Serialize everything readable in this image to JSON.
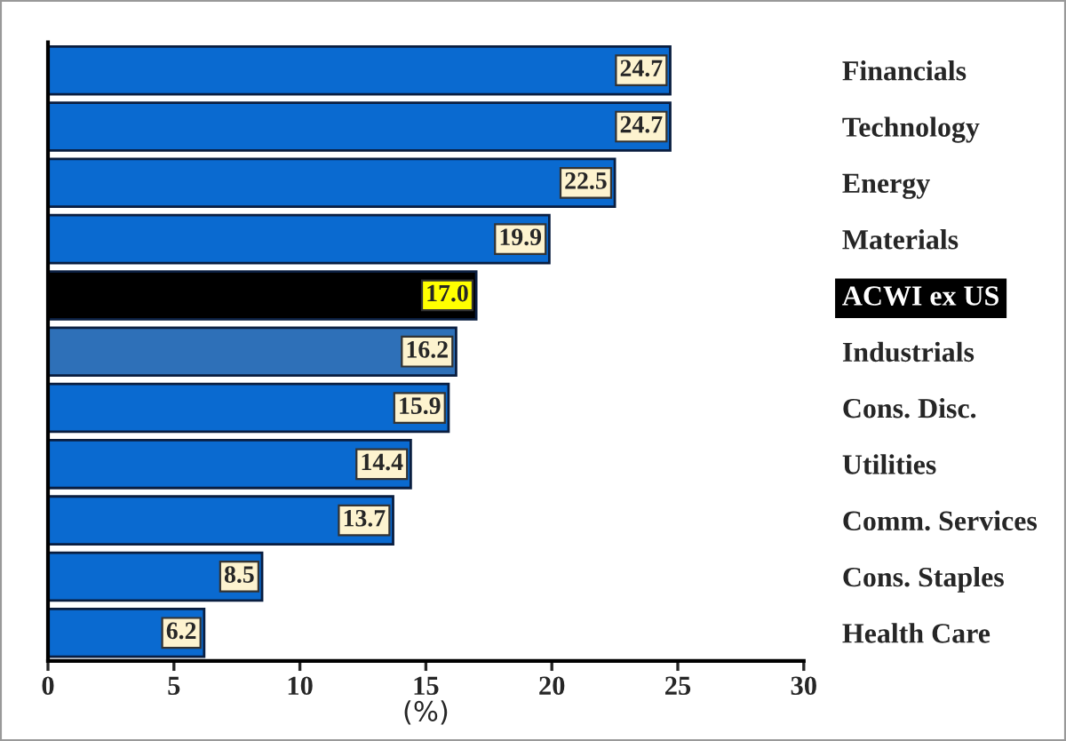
{
  "chart_data": {
    "type": "bar",
    "orientation": "horizontal",
    "xlabel": "(%)",
    "categories": [
      "Financials",
      "Technology",
      "Energy",
      "Materials",
      "ACWI ex US",
      "Industrials",
      "Cons. Disc.",
      "Utilities",
      "Comm. Services",
      "Cons. Staples",
      "Health Care"
    ],
    "values": [
      24.7,
      24.7,
      22.5,
      19.9,
      17.0,
      16.2,
      15.9,
      14.4,
      13.7,
      8.5,
      6.2
    ],
    "value_labels": [
      "24.7",
      "24.7",
      "22.5",
      "19.9",
      "17.0",
      "16.2",
      "15.9",
      "14.4",
      "13.7",
      "8.5",
      "6.2"
    ],
    "colors": [
      "#0a6ad0",
      "#0a6ad0",
      "#0a6ad0",
      "#0a6ad0",
      "#000000",
      "#2e70b8",
      "#0a6ad0",
      "#0a6ad0",
      "#0a6ad0",
      "#0a6ad0",
      "#0a6ad0"
    ],
    "xlim": [
      0,
      30
    ],
    "xticks": [
      0,
      5,
      10,
      15,
      20,
      25,
      30
    ],
    "grid": false,
    "legend": false
  }
}
